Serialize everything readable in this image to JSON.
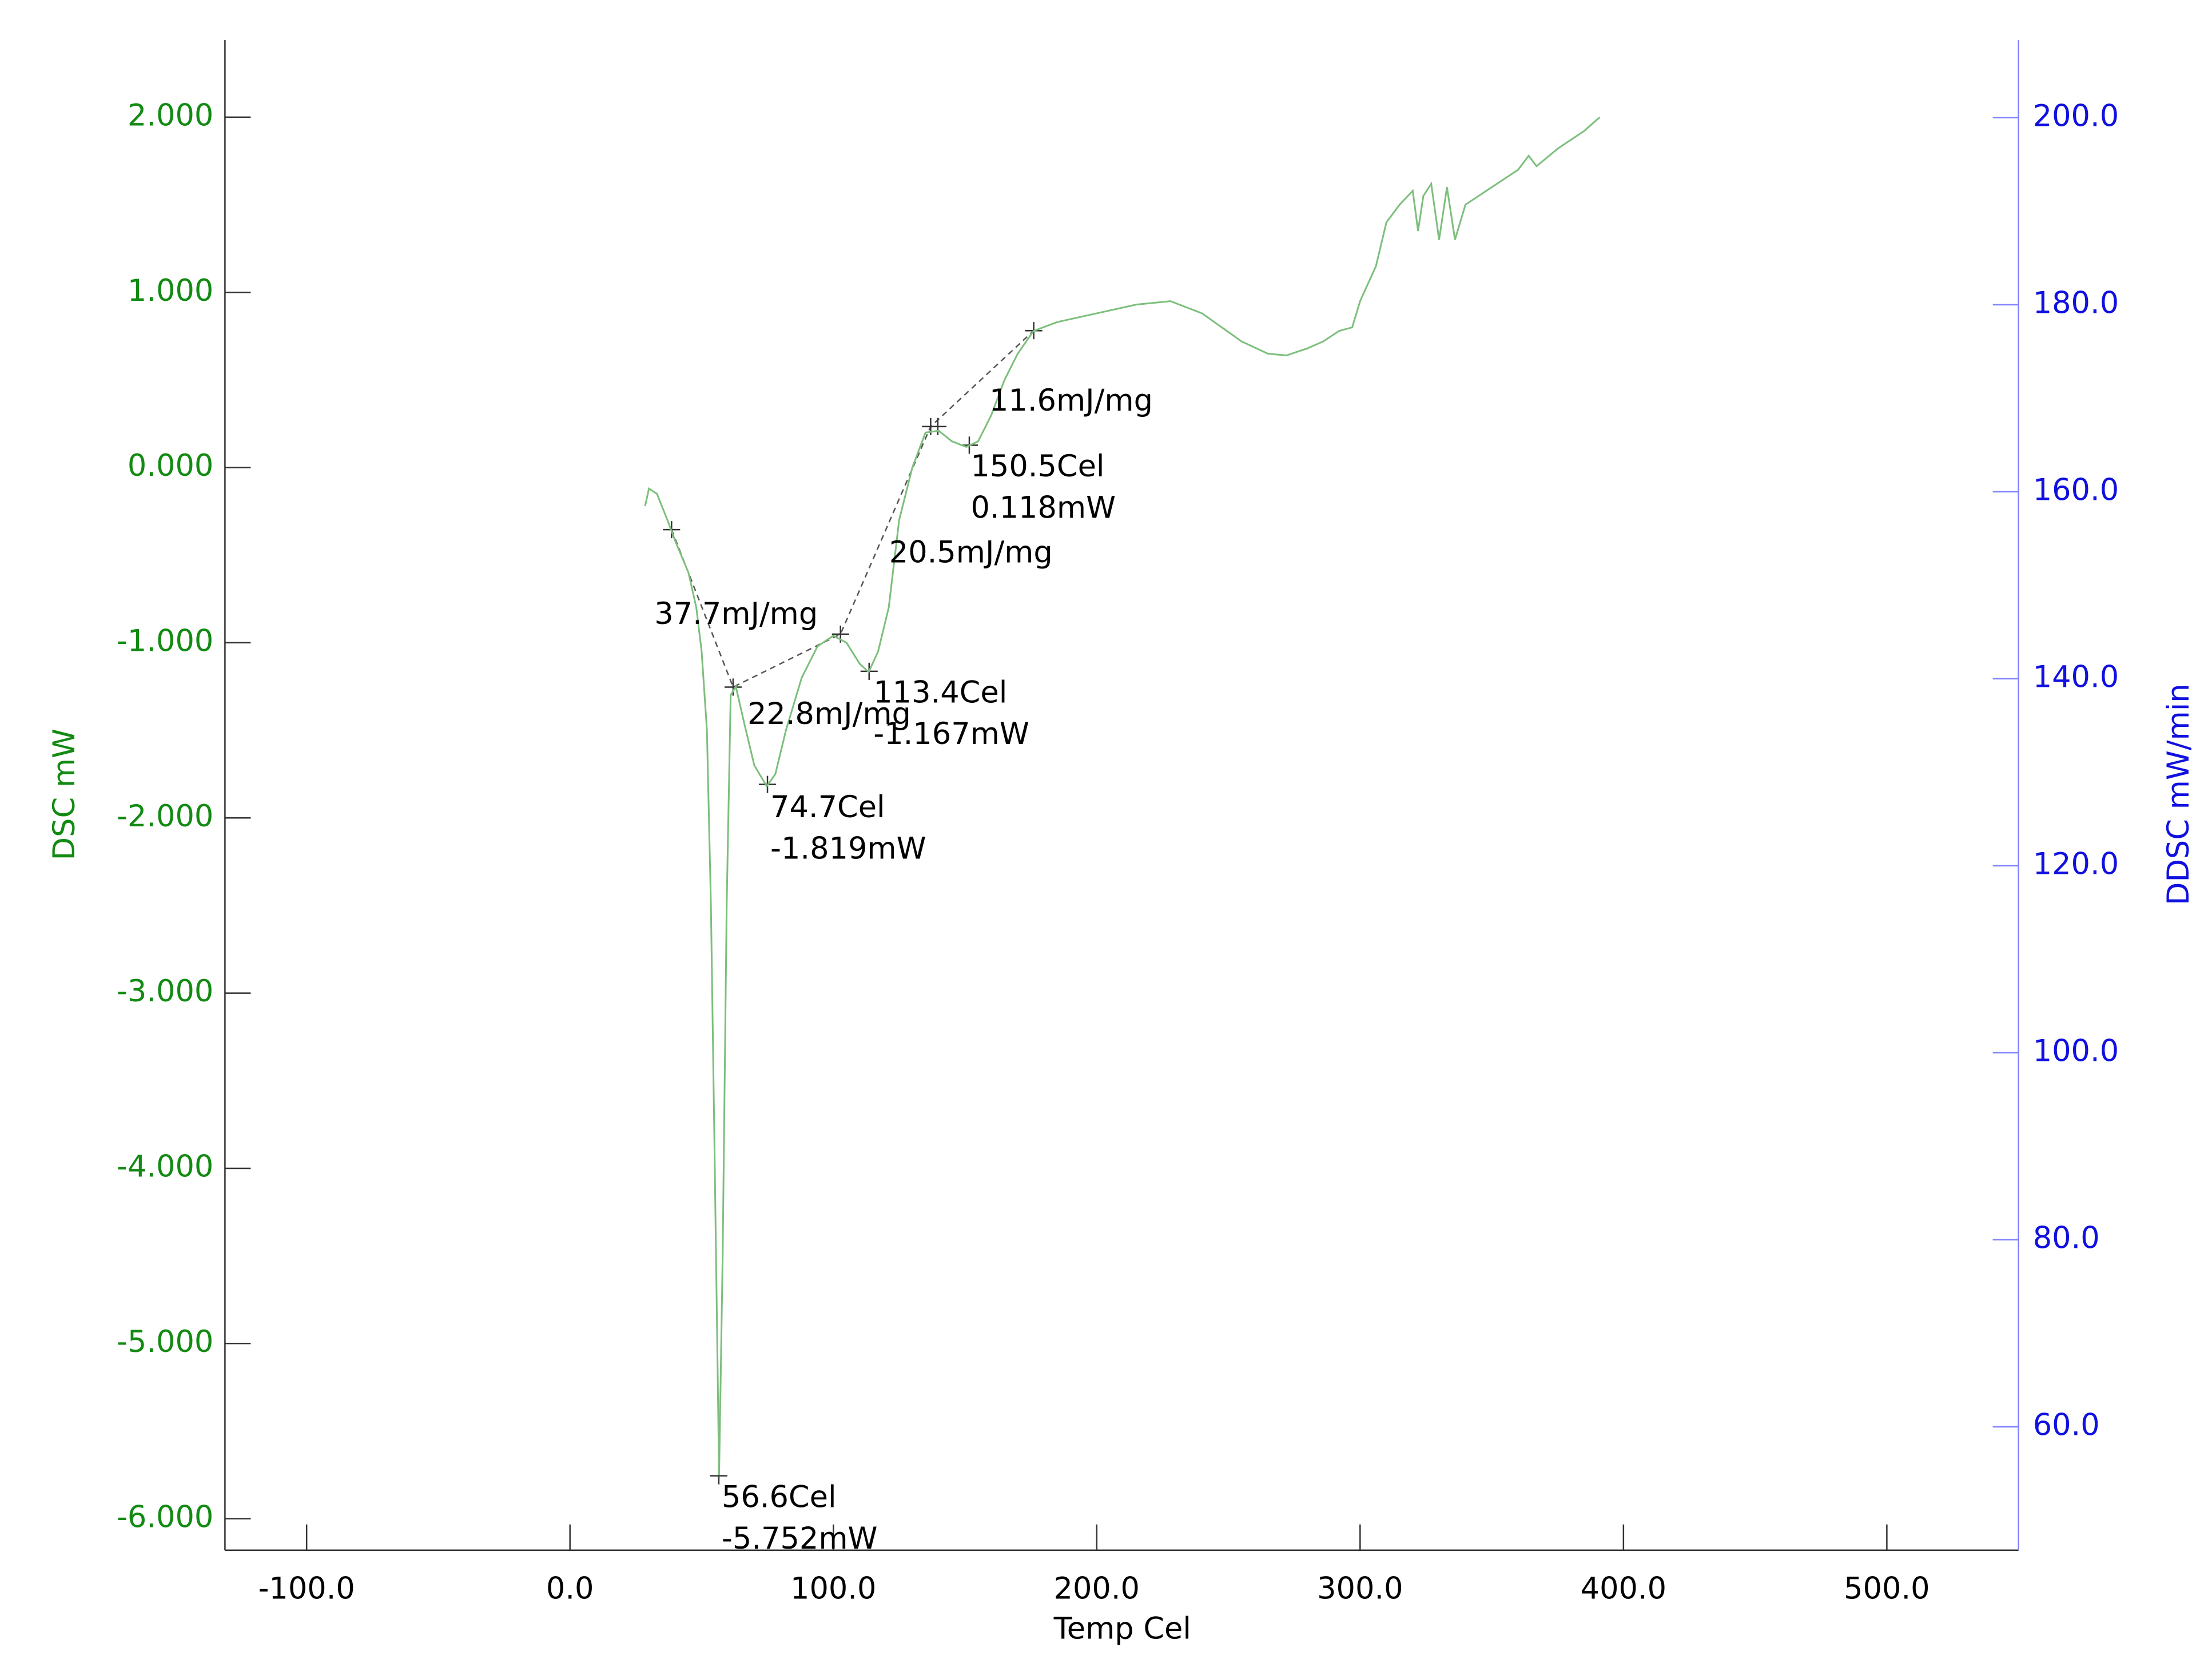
{
  "chart_data": {
    "type": "line",
    "x_label": "Temp Cel",
    "y_label": "DSC mW",
    "y2_label": "DDSC mW/min",
    "xlim": [
      -131,
      550
    ],
    "ylim": [
      -6.18,
      2.44
    ],
    "y2lim": [
      46.8,
      208.3
    ],
    "xticks": [
      {
        "value": -100,
        "label": "-100.0"
      },
      {
        "value": 0,
        "label": "0.0"
      },
      {
        "value": 100,
        "label": "100.0"
      },
      {
        "value": 200,
        "label": "200.0"
      },
      {
        "value": 300,
        "label": "300.0"
      },
      {
        "value": 400,
        "label": "400.0"
      },
      {
        "value": 500,
        "label": "500.0"
      }
    ],
    "yticks": [
      {
        "value": 2,
        "label": "2.000"
      },
      {
        "value": 1,
        "label": "1.000"
      },
      {
        "value": 0,
        "label": "0.000"
      },
      {
        "value": -1,
        "label": "-1.000"
      },
      {
        "value": -2,
        "label": "-2.000"
      },
      {
        "value": -3,
        "label": "-3.000"
      },
      {
        "value": -4,
        "label": "-4.000"
      },
      {
        "value": -5,
        "label": "-5.000"
      },
      {
        "value": -6,
        "label": "-6.000"
      }
    ],
    "y2ticks": [
      {
        "value": 200,
        "label": "200.0"
      },
      {
        "value": 180,
        "label": "180.0"
      },
      {
        "value": 160,
        "label": "160.0"
      },
      {
        "value": 140,
        "label": "140.0"
      },
      {
        "value": 120,
        "label": "120.0"
      },
      {
        "value": 100,
        "label": "100.0"
      },
      {
        "value": 80,
        "label": "80.0"
      },
      {
        "value": 60,
        "label": "60.0"
      }
    ],
    "y_color": "#138a13",
    "y2_color": "#1010e0",
    "series": [
      {
        "name": "DSC",
        "color": "#7cbf7c",
        "x": [
          28.5,
          30,
          33,
          37,
          40,
          45,
          48,
          50,
          52,
          53.5,
          55,
          56.6,
          58,
          59.5,
          61,
          63,
          66,
          70,
          74.7,
          78,
          82,
          88,
          94,
          100,
          105,
          110,
          113.4,
          117,
          121,
          125,
          130,
          135,
          140,
          145,
          150.5,
          155,
          160,
          165,
          170,
          176,
          185,
          200,
          215,
          228,
          240,
          255,
          265,
          272,
          280,
          286,
          292,
          297,
          300,
          306,
          310,
          315,
          320,
          322,
          324,
          327,
          330,
          333,
          336,
          340,
          350,
          360,
          364,
          367,
          375,
          385,
          391
        ],
        "values": [
          -0.22,
          -0.12,
          -0.15,
          -0.3,
          -0.42,
          -0.6,
          -0.8,
          -1.05,
          -1.5,
          -2.5,
          -4.0,
          -5.752,
          -4.5,
          -2.5,
          -1.3,
          -1.25,
          -1.45,
          -1.7,
          -1.819,
          -1.75,
          -1.5,
          -1.2,
          -1.02,
          -0.96,
          -1.0,
          -1.12,
          -1.167,
          -1.05,
          -0.8,
          -0.3,
          0.0,
          0.2,
          0.21,
          0.15,
          0.118,
          0.15,
          0.3,
          0.5,
          0.65,
          0.78,
          0.83,
          0.88,
          0.93,
          0.95,
          0.88,
          0.72,
          0.65,
          0.64,
          0.68,
          0.72,
          0.78,
          0.8,
          0.95,
          1.15,
          1.4,
          1.5,
          1.58,
          1.35,
          1.55,
          1.62,
          1.3,
          1.6,
          1.3,
          1.5,
          1.6,
          1.7,
          1.78,
          1.72,
          1.82,
          1.92,
          2.0
        ]
      }
    ],
    "annotations": [
      "37.7mJ/mg",
      "22.8mJ/mg",
      "20.5mJ/mg",
      "11.6mJ/mg",
      "150.5Cel",
      "0.118mW",
      "113.4Cel",
      "-1.167mW",
      "74.7Cel",
      "-1.819mW",
      "56.6Cel",
      "-5.752mW"
    ]
  }
}
